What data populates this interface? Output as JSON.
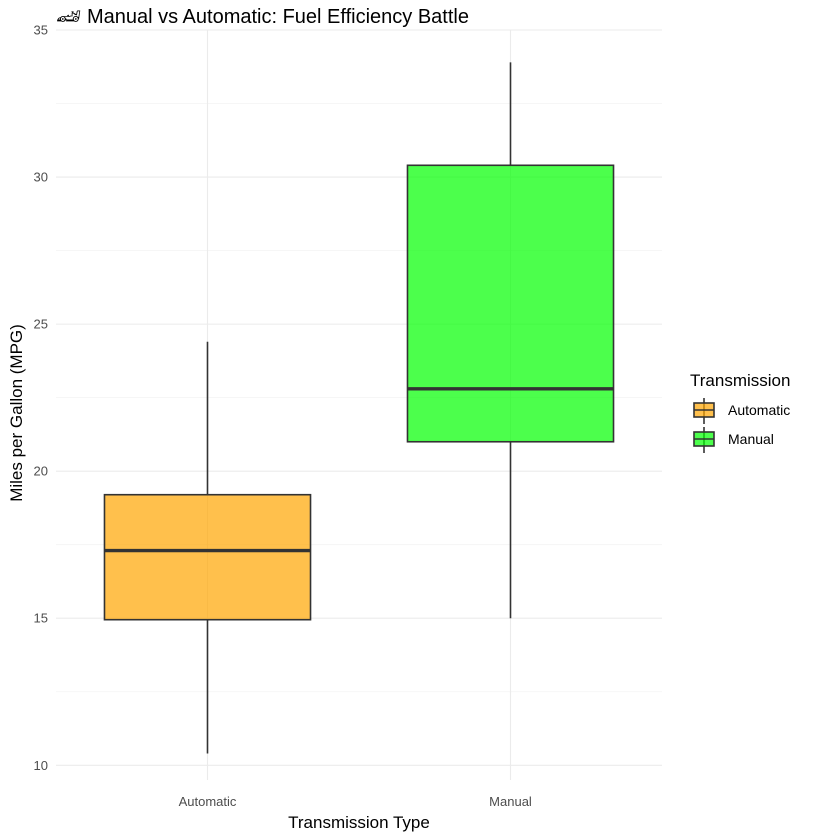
{
  "colors": {
    "Automatic": "#FFA500",
    "Manual": "#00FF00"
  },
  "chart_data": {
    "type": "box",
    "title": "🏎 Manual vs Automatic: Fuel Efficiency Battle",
    "xlabel": "Transmission Type",
    "ylabel": "Miles per Gallon (MPG)",
    "categories": [
      "Automatic",
      "Manual"
    ],
    "ylim": [
      9.5,
      35
    ],
    "yticks": [
      10,
      15,
      20,
      25,
      30,
      35
    ],
    "grid": true,
    "legend": {
      "title": "Transmission",
      "position": "right",
      "entries": [
        "Automatic",
        "Manual"
      ]
    },
    "boxes": [
      {
        "name": "Automatic",
        "min": 10.4,
        "q1": 14.95,
        "median": 17.3,
        "q3": 19.2,
        "max": 24.4
      },
      {
        "name": "Manual",
        "min": 15.0,
        "q1": 21.0,
        "median": 22.8,
        "q3": 30.4,
        "max": 33.9
      }
    ]
  }
}
